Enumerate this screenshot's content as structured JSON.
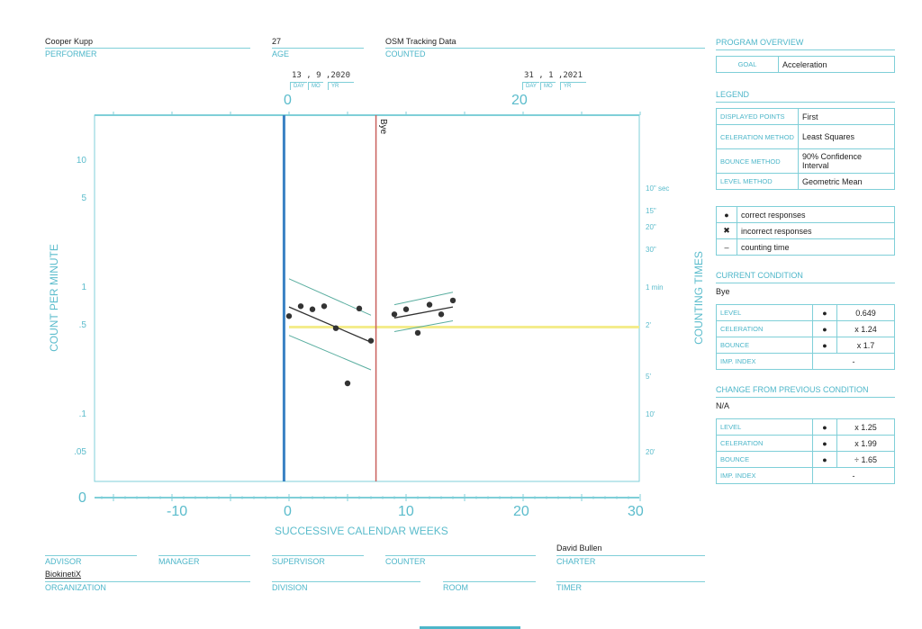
{
  "header": {
    "performer": {
      "label": "PERFORMER",
      "value": "Cooper Kupp"
    },
    "age": {
      "label": "AGE",
      "value": "27"
    },
    "counted": {
      "label": "COUNTED",
      "value": "OSM Tracking Data"
    }
  },
  "footer": {
    "advisor": {
      "label": "ADVISOR",
      "value": ""
    },
    "manager": {
      "label": "MANAGER",
      "value": ""
    },
    "supervisor": {
      "label": "SUPERVISOR",
      "value": ""
    },
    "counter": {
      "label": "COUNTER",
      "value": ""
    },
    "charter": {
      "label": "CHARTER",
      "value": "David Bullen"
    },
    "organization": {
      "label": "ORGANIZATION",
      "value": "BiokinetiX"
    },
    "division": {
      "label": "DIVISION",
      "value": ""
    },
    "room": {
      "label": "ROOM",
      "value": ""
    },
    "timer": {
      "label": "TIMER",
      "value": ""
    }
  },
  "top_dates": [
    {
      "date": "13 , 9 ,2020",
      "week": "0",
      "day": "DAY",
      "mo": "MO",
      "yr": "YR"
    },
    {
      "date": "31 , 1 ,2021",
      "week": "20",
      "day": "DAY",
      "mo": "MO",
      "yr": "YR"
    }
  ],
  "sidebar": {
    "program_overview": {
      "title": "PROGRAM OVERVIEW",
      "goal_label": "GOAL",
      "goal_value": "Acceleration"
    },
    "legend": {
      "title": "LEGEND",
      "rows": [
        {
          "k": "DISPLAYED POINTS",
          "v": "First"
        },
        {
          "k": "CELERATION METHOD",
          "v": "Least Squares"
        },
        {
          "k": "BOUNCE METHOD",
          "v": "90% Confidence Interval"
        },
        {
          "k": "LEVEL METHOD",
          "v": "Geometric Mean"
        }
      ],
      "symbols": [
        {
          "sym": "●",
          "label": "correct responses"
        },
        {
          "sym": "✖",
          "label": "incorrect responses"
        },
        {
          "sym": "‒",
          "label": "counting time"
        }
      ]
    },
    "current": {
      "title": "CURRENT CONDITION",
      "name": "Bye",
      "rows": [
        {
          "k": "LEVEL",
          "sym": "●",
          "v": "0.649"
        },
        {
          "k": "CELERATION",
          "sym": "●",
          "v": "x 1.24"
        },
        {
          "k": "BOUNCE",
          "sym": "●",
          "v": "x 1.7"
        },
        {
          "k": "IMP. INDEX",
          "sym": "",
          "v": "-"
        }
      ]
    },
    "change": {
      "title": "CHANGE FROM PREVIOUS CONDITION",
      "name": "N/A",
      "rows": [
        {
          "k": "LEVEL",
          "sym": "●",
          "v": "x 1.25"
        },
        {
          "k": "CELERATION",
          "sym": "●",
          "v": "x 1.99"
        },
        {
          "k": "BOUNCE",
          "sym": "●",
          "v": "÷ 1.65"
        },
        {
          "k": "IMP. INDEX",
          "sym": "",
          "v": "-"
        }
      ]
    }
  },
  "chart_data": {
    "type": "scatter",
    "xlabel": "SUCCESSIVE CALENDAR WEEKS",
    "ylabel": "COUNT PER MINUTE",
    "y2label": "COUNTING TIMES",
    "yscale": "log",
    "x_unit": "days",
    "xlim_weeks": [
      -16.6,
      30
    ],
    "ylim": [
      0.03,
      23
    ],
    "x_ticks": [
      "0",
      "-10",
      "0",
      "10",
      "20",
      "30"
    ],
    "y_ticks": [
      {
        "v": 10,
        "t": "10"
      },
      {
        "v": 5,
        "t": "5"
      },
      {
        "v": 1,
        "t": "1"
      },
      {
        "v": 0.5,
        "t": ".5"
      },
      {
        "v": 0.1,
        "t": ".1"
      },
      {
        "v": 0.05,
        "t": ".05"
      }
    ],
    "y2_ticks": [
      {
        "v": 6,
        "t": "10\" sec"
      },
      {
        "v": 4,
        "t": "15\""
      },
      {
        "v": 3,
        "t": "20\""
      },
      {
        "v": 2,
        "t": "30\""
      },
      {
        "v": 1,
        "t": "1 min"
      },
      {
        "v": 0.5,
        "t": "2'"
      },
      {
        "v": 0.2,
        "t": "5'"
      },
      {
        "v": 0.1,
        "t": "10'"
      },
      {
        "v": 0.05,
        "t": "20'"
      }
    ],
    "phase_lines": [
      {
        "day": -3,
        "color": "#3b82c4",
        "label": ""
      },
      {
        "day": 52,
        "color": "#c9605c",
        "label": "Bye"
      }
    ],
    "goal_line": {
      "value": 0.5,
      "from_day": 0,
      "color": "#f4ec8c"
    },
    "series": [
      {
        "name": "correct responses",
        "points": [
          [
            0,
            0.61
          ],
          [
            7,
            0.73
          ],
          [
            14,
            0.69
          ],
          [
            21,
            0.73
          ],
          [
            28,
            0.49
          ],
          [
            35,
            0.18
          ],
          [
            42,
            0.7
          ],
          [
            49,
            0.39
          ],
          [
            63,
            0.63
          ],
          [
            70,
            0.69
          ],
          [
            77,
            0.45
          ],
          [
            84,
            0.75
          ],
          [
            91,
            0.63
          ],
          [
            98,
            0.81
          ]
        ]
      }
    ],
    "trend_lines": [
      {
        "kind": "celeration",
        "from": [
          0,
          0.72
        ],
        "to": [
          49,
          0.38
        ]
      },
      {
        "kind": "bounce-upper",
        "from": [
          0,
          1.2
        ],
        "to": [
          49,
          0.62
        ]
      },
      {
        "kind": "bounce-lower",
        "from": [
          0,
          0.43
        ],
        "to": [
          49,
          0.23
        ]
      },
      {
        "kind": "celeration",
        "from": [
          63,
          0.59
        ],
        "to": [
          98,
          0.72
        ]
      },
      {
        "kind": "bounce-upper",
        "from": [
          63,
          0.75
        ],
        "to": [
          98,
          0.94
        ]
      },
      {
        "kind": "bounce-lower",
        "from": [
          63,
          0.46
        ],
        "to": [
          98,
          0.56
        ]
      }
    ]
  }
}
